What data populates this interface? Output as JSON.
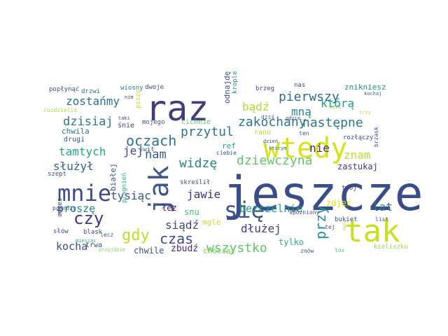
{
  "words": [
    {
      "text": "jeszcze",
      "color": "#3b4d89"
    },
    {
      "text": "raz",
      "color": "#413d7b"
    },
    {
      "text": "tak",
      "color": "#c8e020"
    },
    {
      "text": "wtedy",
      "color": "#d8e219"
    },
    {
      "text": "jak",
      "color": "#3a568c"
    },
    {
      "text": "mnie",
      "color": "#3d4d8a"
    },
    {
      "text": "się",
      "color": "#3a538b"
    },
    {
      "text": "czy",
      "color": "#453882"
    },
    {
      "text": "gdy",
      "color": "#c2df23"
    },
    {
      "text": "przy",
      "color": "#21918c"
    },
    {
      "text": "oczach",
      "color": "#2c728e"
    },
    {
      "text": "czas",
      "color": "#3e4989"
    },
    {
      "text": "wszystko",
      "color": "#5ac864"
    },
    {
      "text": "pierwszy",
      "color": "#2f6b8e"
    },
    {
      "text": "zakochany",
      "color": "#2a778e"
    },
    {
      "text": "dziewczyna",
      "color": "#5ec962"
    },
    {
      "text": "widzę",
      "color": "#25848e"
    },
    {
      "text": "przytul",
      "color": "#2a788e"
    },
    {
      "text": "następne",
      "color": "#2a788e"
    },
    {
      "text": "zostańmy",
      "color": "#2c728e"
    },
    {
      "text": "dzisiaj",
      "color": "#29798e"
    },
    {
      "text": "jawie",
      "color": "#46327e"
    },
    {
      "text": "tysiąc",
      "color": "#39568c"
    },
    {
      "text": "nam",
      "color": "#365c8d"
    },
    {
      "text": "tamtych",
      "color": "#22a884"
    },
    {
      "text": "jej",
      "color": "#414487"
    },
    {
      "text": "bądź",
      "color": "#addc30"
    },
    {
      "text": "mną",
      "color": "#23898e"
    },
    {
      "text": "którą",
      "color": "#1fa088"
    },
    {
      "text": "nie",
      "color": "#482878"
    },
    {
      "text": "znam",
      "color": "#b5de2b"
    },
    {
      "text": "lat",
      "color": "#2c728e"
    },
    {
      "text": "siądź",
      "color": "#3f4788"
    },
    {
      "text": "dłużej",
      "color": "#443a83"
    },
    {
      "text": "bezczelnie",
      "color": "#1f9e89"
    },
    {
      "text": "kocha",
      "color": "#3e4c8a"
    },
    {
      "text": "służył",
      "color": "#34618d"
    },
    {
      "text": "proszę",
      "color": "#26828e"
    },
    {
      "text": "zastukaj",
      "color": "#46337e"
    },
    {
      "text": "tylko",
      "color": "#2db27d"
    },
    {
      "text": "zdjęć",
      "color": "#dde318"
    },
    {
      "text": "snu",
      "color": "#3dbc74"
    },
    {
      "text": "łez",
      "color": "#471365"
    },
    {
      "text": "mgle",
      "color": "#bddf26"
    },
    {
      "text": "chwile",
      "color": "#3b518b"
    },
    {
      "text": "zbudź",
      "color": "#472c7a"
    },
    {
      "text": "trwa",
      "color": "#3e4a89"
    },
    {
      "text": "chociaż",
      "color": "#7cd250"
    },
    {
      "text": "zniknie​sz",
      "color": "#21918c"
    },
    {
      "text": "odnajdę",
      "color": "#3e4989"
    },
    {
      "text": "rano",
      "color": "#b5de2b"
    },
    {
      "text": "ref",
      "color": "#20a386"
    },
    {
      "text": "twój",
      "color": "#46337e"
    },
    {
      "text": "białej",
      "color": "#38598c"
    },
    {
      "text": "chwila",
      "color": "#2c728e"
    },
    {
      "text": "śnie",
      "color": "#414487"
    },
    {
      "text": "mojego",
      "color": "#3b528b"
    },
    {
      "text": "cichnie",
      "color": "#5ac864"
    },
    {
      "text": "drugi",
      "color": "#3a548c"
    },
    {
      "text": "świt",
      "color": "#31688e"
    },
    {
      "text": "ciebie",
      "color": "#3b528b"
    },
    {
      "text": "którym",
      "color": "#2c728e"
    },
    {
      "text": "dzień",
      "color": "#39568c"
    },
    {
      "text": "skreślił",
      "color": "#3b518b"
    },
    {
      "text": "pragnień",
      "color": "#2db27d"
    },
    {
      "text": "adres",
      "color": "#443b84"
    },
    {
      "text": "szept",
      "color": "#3b528b"
    },
    {
      "text": "podróży",
      "color": "#3e4c8a"
    },
    {
      "text": "słów",
      "color": "#3b518b"
    },
    {
      "text": "blask",
      "color": "#3e4989"
    },
    {
      "text": "miesiąc",
      "color": "#2ab07f"
    },
    {
      "text": "przyjdzie",
      "color": "#7ad151"
    },
    {
      "text": "lecz",
      "color": "#3b518b"
    },
    {
      "text": "popłynąć",
      "color": "#3b528b"
    },
    {
      "text": "drzwi",
      "color": "#2e6f8e"
    },
    {
      "text": "wiosny",
      "color": "#2a788e"
    },
    {
      "text": "nim",
      "color": "#433e85"
    },
    {
      "text": "dwoje",
      "color": "#3b528b"
    },
    {
      "text": "krople",
      "color": "#21918c"
    },
    {
      "text": "brzeg",
      "color": "#3e4a89"
    },
    {
      "text": "nas",
      "color": "#3b518b"
    },
    {
      "text": "kochaj",
      "color": "#31688e"
    },
    {
      "text": "rozdzieliś",
      "color": "#a2da37"
    },
    {
      "text": "pisze",
      "color": "#c5e021"
    },
    {
      "text": "taki",
      "color": "#3b528b"
    },
    {
      "text": "spóźniony",
      "color": "#3e4989"
    },
    {
      "text": "dziś",
      "color": "#3b528b"
    },
    {
      "text": "gdzie",
      "color": "#3e4c8a"
    },
    {
      "text": "serc",
      "color": "#7fd34e"
    },
    {
      "text": "trzy",
      "color": "#b8de29"
    },
    {
      "text": "ten",
      "color": "#3b528b"
    },
    {
      "text": "rozłączy",
      "color": "#3b528b"
    },
    {
      "text": "brzask",
      "color": "#3b528b"
    },
    {
      "text": "bukiet",
      "color": "#3b518b"
    },
    {
      "text": "list",
      "color": "#3e4c8a"
    },
    {
      "text": "tej",
      "color": "#3b528b"
    },
    {
      "text": "może",
      "color": "#a8db34"
    },
    {
      "text": "znów",
      "color": "#3b528b"
    },
    {
      "text": "los",
      "color": "#4ac16d"
    },
    {
      "text": "kieliszku",
      "color": "#95d840"
    }
  ]
}
